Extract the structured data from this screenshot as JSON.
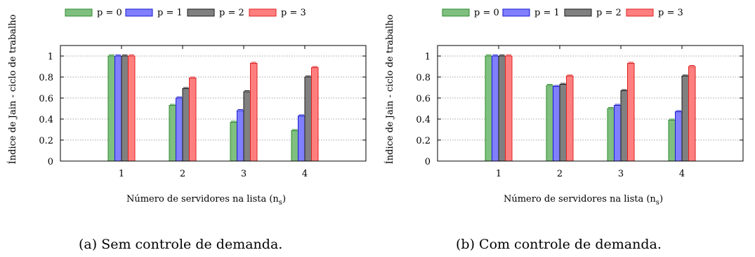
{
  "chart_data": [
    {
      "type": "bar",
      "panel": "a",
      "ylabel": "Índice de Jain - ciclo de trabalho",
      "xlabel_main": "Número de servidores na lista (n",
      "xlabel_sub": "s",
      "xlabel_close": ")",
      "caption": "(a) Sem controle de demanda.",
      "categories": [
        "1",
        "2",
        "3",
        "4"
      ],
      "ylim": [
        0,
        1.1
      ],
      "yticks": [
        "0",
        "0.2",
        "0.4",
        "0.6",
        "0.8",
        "1"
      ],
      "grid": true,
      "legend_position": "top",
      "series": [
        {
          "name": "p = 0",
          "color": "#7fbf7f",
          "edge": "#2e8b2e",
          "values": [
            1.0,
            0.53,
            0.37,
            0.29
          ]
        },
        {
          "name": "p = 1",
          "color": "#7f7fff",
          "edge": "#1a1acc",
          "values": [
            1.0,
            0.6,
            0.48,
            0.43
          ]
        },
        {
          "name": "p = 2",
          "color": "#808080",
          "edge": "#1a1a1a",
          "values": [
            1.0,
            0.69,
            0.66,
            0.8
          ]
        },
        {
          "name": "p = 3",
          "color": "#ff7f7f",
          "edge": "#dd2020",
          "values": [
            1.0,
            0.79,
            0.93,
            0.89
          ]
        }
      ]
    },
    {
      "type": "bar",
      "panel": "b",
      "ylabel": "Índice de Jain - ciclo de trabalho",
      "xlabel_main": "Número de servidores na lista (n",
      "xlabel_sub": "s",
      "xlabel_close": ")",
      "caption": "(b) Com controle de demanda.",
      "categories": [
        "1",
        "2",
        "3",
        "4"
      ],
      "ylim": [
        0,
        1.1
      ],
      "yticks": [
        "0",
        "0.2",
        "0.4",
        "0.6",
        "0.8",
        "1"
      ],
      "grid": true,
      "legend_position": "top",
      "series": [
        {
          "name": "p = 0",
          "color": "#7fbf7f",
          "edge": "#2e8b2e",
          "values": [
            1.0,
            0.72,
            0.5,
            0.39
          ]
        },
        {
          "name": "p = 1",
          "color": "#7f7fff",
          "edge": "#1a1acc",
          "values": [
            1.0,
            0.71,
            0.53,
            0.47
          ]
        },
        {
          "name": "p = 2",
          "color": "#808080",
          "edge": "#1a1a1a",
          "values": [
            1.0,
            0.73,
            0.67,
            0.81
          ]
        },
        {
          "name": "p = 3",
          "color": "#ff7f7f",
          "edge": "#dd2020",
          "values": [
            1.0,
            0.81,
            0.93,
            0.9
          ]
        }
      ]
    }
  ]
}
